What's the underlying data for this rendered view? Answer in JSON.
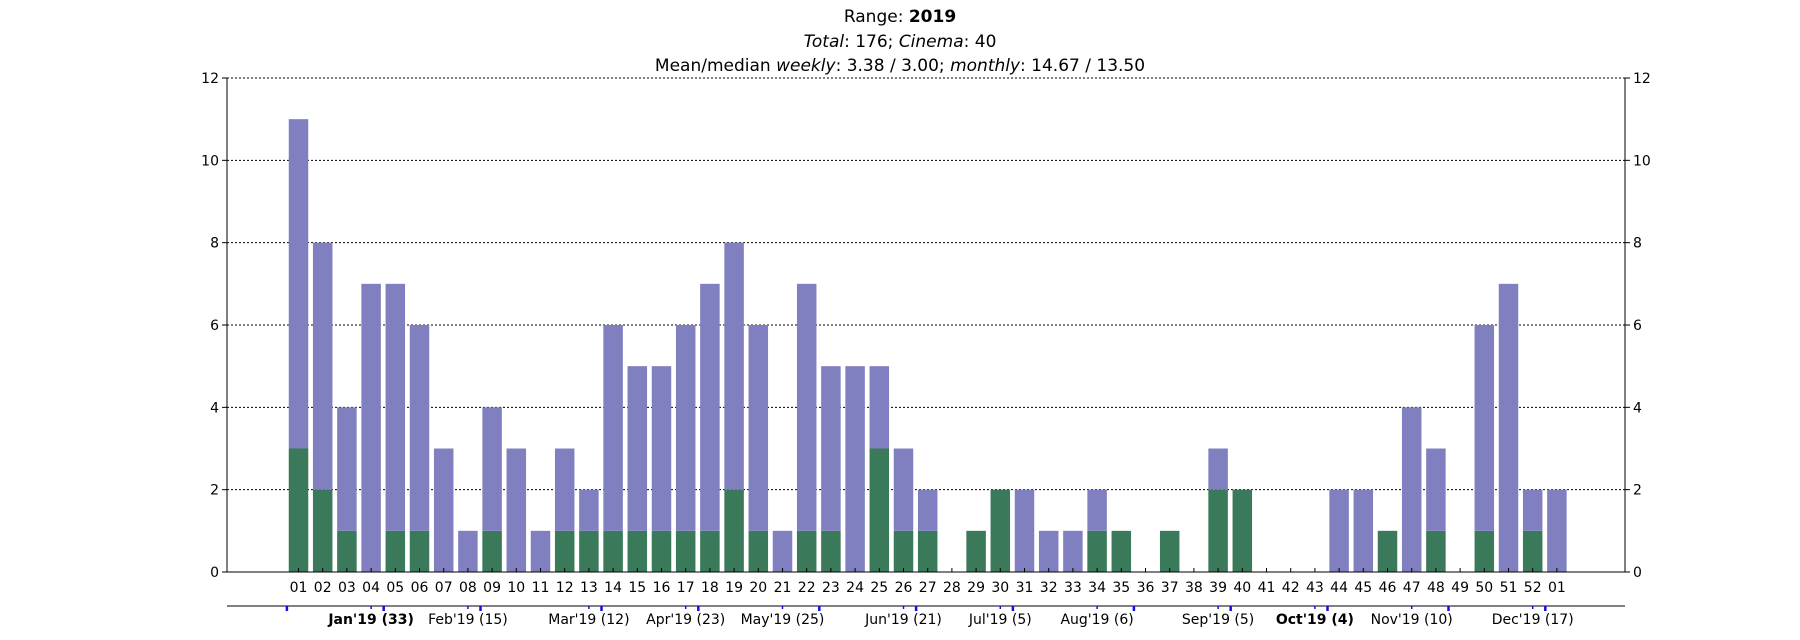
{
  "titles": {
    "line1": {
      "prefix": "Range: ",
      "value": "2019"
    },
    "line2": {
      "total_label": "Total",
      "total_sep": ": 176; ",
      "cinema_label": "Cinema",
      "cinema_sep": ": 40"
    },
    "line3": {
      "prefix": "Mean/median ",
      "weekly_label": "weekly",
      "weekly_vals": ": 3.38 / 3.00; ",
      "monthly_label": "monthly",
      "monthly_vals": ": 14.67 / 13.50"
    }
  },
  "chart_data": {
    "type": "bar",
    "stacked": true,
    "ylim": [
      0,
      12
    ],
    "yticks": [
      0,
      2,
      4,
      6,
      8,
      10,
      12
    ],
    "grid": "horizontal dotted",
    "right_axis_labels": true,
    "categories": [
      "01",
      "02",
      "03",
      "04",
      "05",
      "06",
      "07",
      "08",
      "09",
      "10",
      "11",
      "12",
      "13",
      "14",
      "15",
      "16",
      "17",
      "18",
      "19",
      "20",
      "21",
      "22",
      "23",
      "24",
      "25",
      "26",
      "27",
      "28",
      "29",
      "30",
      "31",
      "32",
      "33",
      "34",
      "35",
      "36",
      "37",
      "38",
      "39",
      "40",
      "41",
      "42",
      "43",
      "44",
      "45",
      "46",
      "47",
      "48",
      "49",
      "50",
      "51",
      "52",
      "01"
    ],
    "series": [
      {
        "color": "#3a7a5a",
        "values": [
          3,
          2,
          1,
          0,
          1,
          1,
          0,
          0,
          1,
          0,
          0,
          1,
          1,
          1,
          1,
          1,
          1,
          1,
          2,
          1,
          0,
          1,
          1,
          0,
          3,
          1,
          1,
          0,
          1,
          2,
          0,
          0,
          0,
          1,
          1,
          0,
          1,
          0,
          2,
          2,
          0,
          0,
          0,
          0,
          0,
          1,
          0,
          1,
          0,
          1,
          0,
          1,
          0
        ]
      },
      {
        "color": "#8080c0",
        "values": [
          8,
          6,
          3,
          7,
          6,
          5,
          3,
          1,
          3,
          3,
          1,
          2,
          1,
          5,
          4,
          4,
          5,
          6,
          6,
          5,
          1,
          6,
          4,
          5,
          2,
          2,
          1,
          0,
          0,
          0,
          2,
          1,
          1,
          1,
          0,
          0,
          0,
          0,
          1,
          0,
          0,
          0,
          0,
          2,
          2,
          0,
          4,
          2,
          0,
          5,
          7,
          1,
          2
        ]
      }
    ],
    "months": [
      {
        "label": "Jan'19 (33)",
        "bold": true,
        "center": 3
      },
      {
        "label": "Feb'19 (15)",
        "bold": false,
        "center": 7
      },
      {
        "label": "Mar'19 (12)",
        "bold": false,
        "center": 12
      },
      {
        "label": "Apr'19 (23)",
        "bold": false,
        "center": 16
      },
      {
        "label": "May'19 (25)",
        "bold": false,
        "center": 20
      },
      {
        "label": "Jun'19 (21)",
        "bold": false,
        "center": 25
      },
      {
        "label": "Jul'19 (5)",
        "bold": false,
        "center": 29
      },
      {
        "label": "Aug'19 (6)",
        "bold": false,
        "center": 33
      },
      {
        "label": "Sep'19 (5)",
        "bold": false,
        "center": 38
      },
      {
        "label": "Oct'19 (4)",
        "bold": true,
        "center": 42
      },
      {
        "label": "Nov'19 (10)",
        "bold": false,
        "center": 46
      },
      {
        "label": "Dec'19 (17)",
        "bold": false,
        "center": 51
      }
    ],
    "month_boundaries": [
      0,
      4,
      8,
      13,
      17,
      22,
      26,
      30,
      35,
      39,
      43,
      48,
      52
    ]
  }
}
